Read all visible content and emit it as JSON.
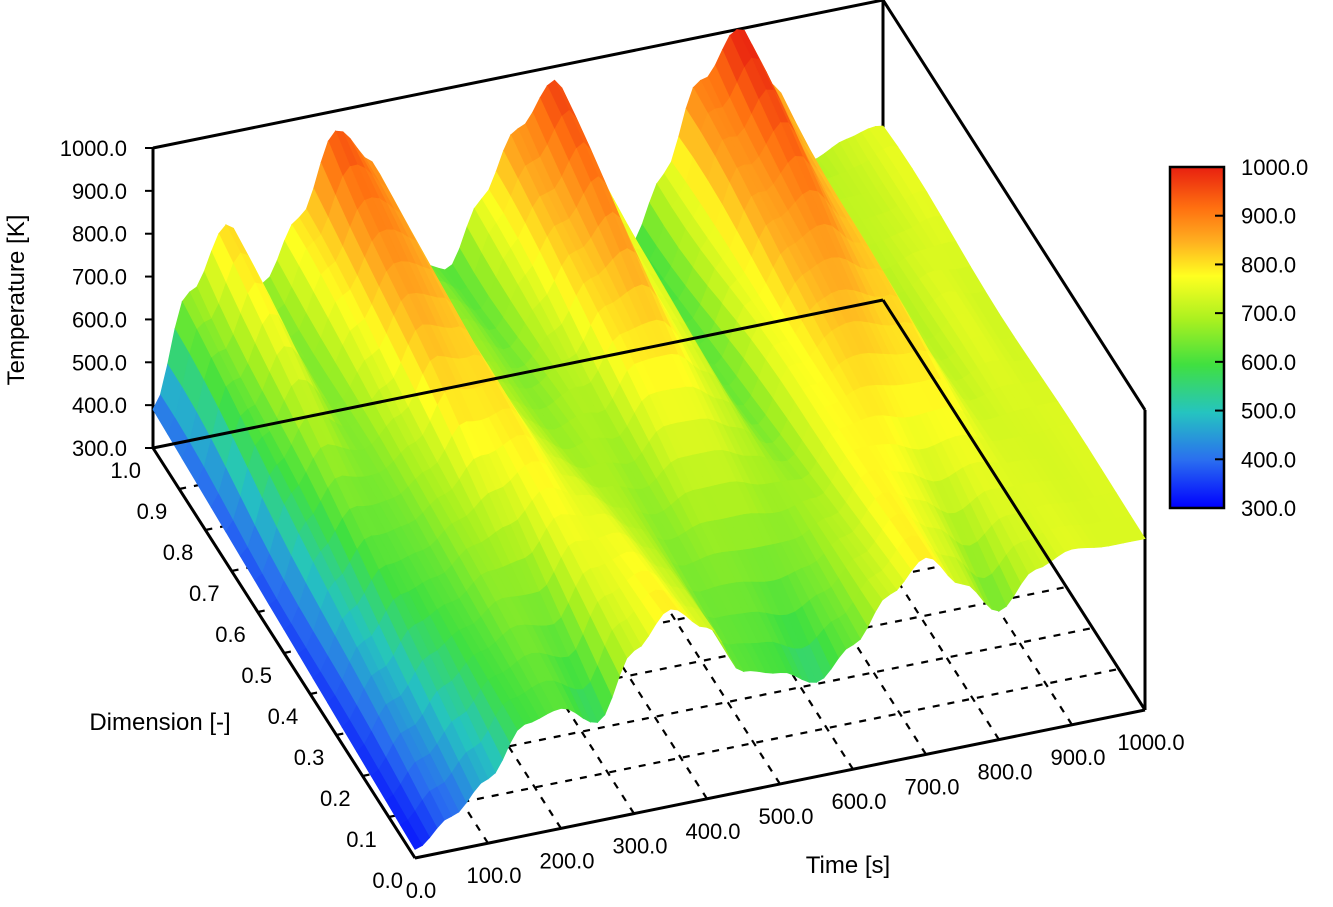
{
  "chart_data": {
    "type": "surface",
    "z_label": "Temperature [K]",
    "x_label": "Time [s]",
    "y_label": "Dimension [-]",
    "x_ticks": [
      "0.0",
      "100.0",
      "200.0",
      "300.0",
      "400.0",
      "500.0",
      "600.0",
      "700.0",
      "800.0",
      "900.0",
      "1000.0"
    ],
    "y_ticks": [
      "0.0",
      "0.1",
      "0.2",
      "0.3",
      "0.4",
      "0.5",
      "0.6",
      "0.7",
      "0.8",
      "0.9",
      "1.0"
    ],
    "z_ticks": [
      "300.0",
      "400.0",
      "500.0",
      "600.0",
      "700.0",
      "800.0",
      "900.0",
      "1000.0"
    ],
    "colorbar_ticks": [
      "300.0",
      "400.0",
      "500.0",
      "600.0",
      "700.0",
      "800.0",
      "900.0",
      "1000.0"
    ],
    "xlim": [
      0,
      1000
    ],
    "ylim": [
      0,
      1
    ],
    "zlim": [
      300,
      1000
    ],
    "colormap": [
      "#0000ff",
      "#2a6ef0",
      "#25c4c0",
      "#40e040",
      "#a8f020",
      "#ffff20",
      "#ffb020",
      "#ff7010",
      "#e82010"
    ],
    "series": [
      {
        "dimension": 1.0,
        "x": [
          0,
          50,
          100,
          150,
          200,
          250,
          300,
          350,
          400,
          450,
          500,
          550,
          600,
          650,
          700,
          750,
          800,
          850,
          900,
          950,
          1000
        ],
        "z": [
          390,
          650,
          780,
          640,
          760,
          960,
          860,
          600,
          580,
          720,
          880,
          960,
          760,
          540,
          700,
          900,
          1000,
          860,
          650,
          700,
          700
        ]
      },
      {
        "dimension": 0.0,
        "x": [
          0,
          50,
          100,
          150,
          200,
          250,
          300,
          350,
          400,
          450,
          500,
          550,
          600,
          650,
          700,
          750,
          800,
          850,
          900,
          950,
          1000
        ],
        "z": [
          320,
          380,
          450,
          560,
          580,
          530,
          680,
          760,
          700,
          580,
          560,
          520,
          590,
          690,
          760,
          680,
          600,
          680,
          710,
          700,
          700
        ]
      }
    ]
  }
}
